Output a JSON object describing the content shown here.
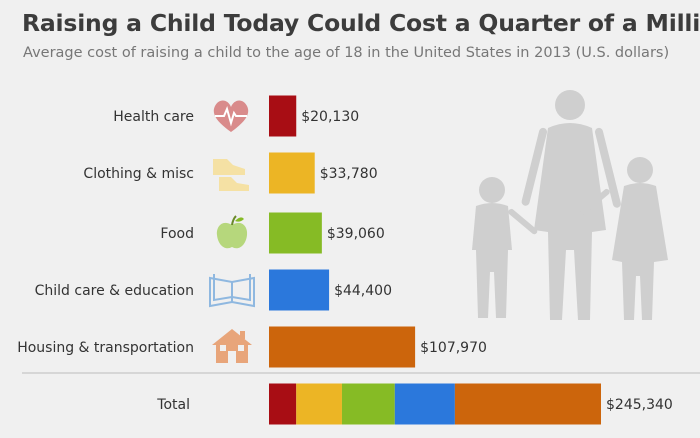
{
  "title": "Raising a Child Today Could Cost a Quarter of a Million",
  "subtitle": "Average cost of raising a child to the age of 18 in the United States in 2013 (U.S. dollars)",
  "chart_data": {
    "type": "bar",
    "orientation": "horizontal",
    "title": "Raising a Child Today Could Cost a Quarter of a Million",
    "subtitle": "Average cost of raising a child to the age of 18 in the United States in 2013 (U.S. dollars)",
    "categories": [
      "Health care",
      "Clothing & misc",
      "Food",
      "Child care & education",
      "Housing & transportation"
    ],
    "values": [
      20130,
      33780,
      39060,
      44400,
      107970
    ],
    "value_labels": [
      "$20,130",
      "$33,780",
      "$39,060",
      "$44,400",
      "$107,970"
    ],
    "colors": [
      "#a80d14",
      "#ecb525",
      "#86bb25",
      "#2b78dc",
      "#cc650c"
    ],
    "icons": [
      "heart-pulse-icon",
      "shoes-icon",
      "apple-icon",
      "open-book-icon",
      "house-icon"
    ],
    "total": {
      "label": "Total",
      "value": 245340,
      "value_label": "$245,340",
      "stacked": true
    },
    "grid": false,
    "legend": "none"
  }
}
